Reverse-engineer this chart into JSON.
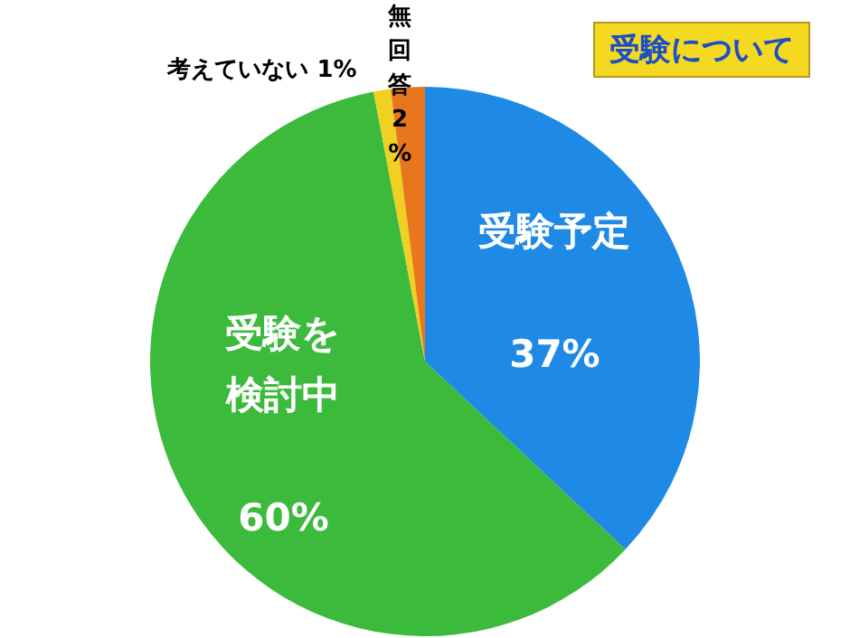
{
  "chart_data": {
    "type": "pie",
    "title": "受験について",
    "categories": [
      "受験予定",
      "受験を検討中",
      "考えていない",
      "無回答"
    ],
    "values": [
      37,
      60,
      1,
      2
    ],
    "colors": [
      "#1e8ae6",
      "#3cba3c",
      "#f0d020",
      "#e8761c"
    ],
    "value_labels": [
      "37%",
      "60%",
      "1%",
      "2%"
    ]
  }
}
